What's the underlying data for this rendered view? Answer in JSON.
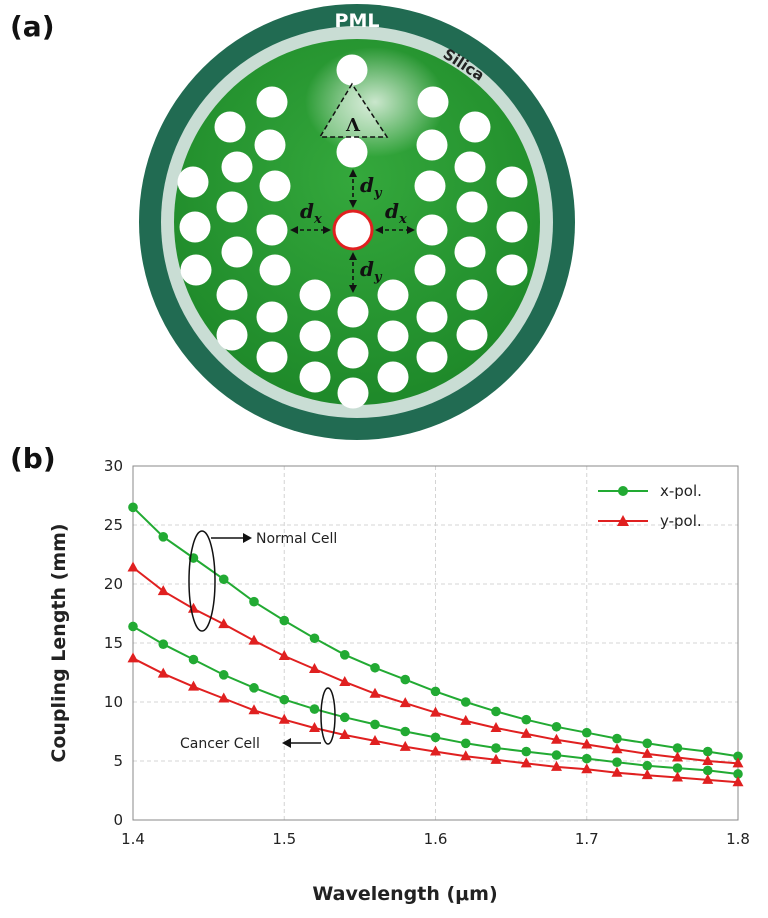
{
  "panel_a": {
    "label": "(a)",
    "outer_layer": "PML",
    "cladding": "Silica",
    "pitch_symbol": "Λ",
    "d_symbol": "d",
    "sub_x": "x",
    "sub_y": "y",
    "colors": {
      "pml": "#216b52",
      "silica": "#c9ddd4",
      "core": "#2a9a33",
      "defect_ring": "#e02020",
      "holes": "#ffffff"
    }
  },
  "panel_b": {
    "label": "(b)",
    "annotations": {
      "normal": "Normal Cell",
      "cancer": "Cancer Cell"
    }
  },
  "chart_data": {
    "type": "line",
    "xlabel": "Wavelength (μm)",
    "ylabel": "Coupling Length (mm)",
    "xlim": [
      1.4,
      1.8
    ],
    "ylim": [
      0,
      30
    ],
    "xticks": [
      "1.4",
      "1.5",
      "1.6",
      "1.7",
      "1.8"
    ],
    "yticks": [
      "0",
      "5",
      "10",
      "15",
      "20",
      "25",
      "30"
    ],
    "grid": true,
    "legend_position": "top-right",
    "x": [
      1.4,
      1.42,
      1.44,
      1.46,
      1.48,
      1.5,
      1.52,
      1.54,
      1.56,
      1.58,
      1.6,
      1.62,
      1.64,
      1.66,
      1.68,
      1.7,
      1.72,
      1.74,
      1.76,
      1.78,
      1.8
    ],
    "series": [
      {
        "name": "x-pol.",
        "group": "Normal Cell",
        "color": "#22aa33",
        "marker": "circle",
        "values": [
          26.5,
          24.0,
          22.2,
          20.4,
          18.5,
          16.9,
          15.4,
          14.0,
          12.9,
          11.9,
          10.9,
          10.0,
          9.2,
          8.5,
          7.9,
          7.4,
          6.9,
          6.5,
          6.1,
          5.8,
          5.4
        ]
      },
      {
        "name": "y-pol.",
        "group": "Normal Cell",
        "color": "#e02020",
        "marker": "triangle",
        "values": [
          21.4,
          19.4,
          17.9,
          16.6,
          15.2,
          13.9,
          12.8,
          11.7,
          10.7,
          9.9,
          9.1,
          8.4,
          7.8,
          7.3,
          6.8,
          6.4,
          6.0,
          5.6,
          5.3,
          5.0,
          4.8
        ]
      },
      {
        "name": "x-pol.",
        "group": "Cancer Cell",
        "color": "#22aa33",
        "marker": "circle",
        "values": [
          16.4,
          14.9,
          13.6,
          12.3,
          11.2,
          10.2,
          9.4,
          8.7,
          8.1,
          7.5,
          7.0,
          6.5,
          6.1,
          5.8,
          5.5,
          5.2,
          4.9,
          4.6,
          4.4,
          4.2,
          3.9
        ]
      },
      {
        "name": "y-pol.",
        "group": "Cancer Cell",
        "color": "#e02020",
        "marker": "triangle",
        "values": [
          13.7,
          12.4,
          11.3,
          10.3,
          9.3,
          8.5,
          7.8,
          7.2,
          6.7,
          6.2,
          5.8,
          5.4,
          5.1,
          4.8,
          4.5,
          4.3,
          4.0,
          3.8,
          3.6,
          3.4,
          3.2
        ]
      }
    ]
  }
}
